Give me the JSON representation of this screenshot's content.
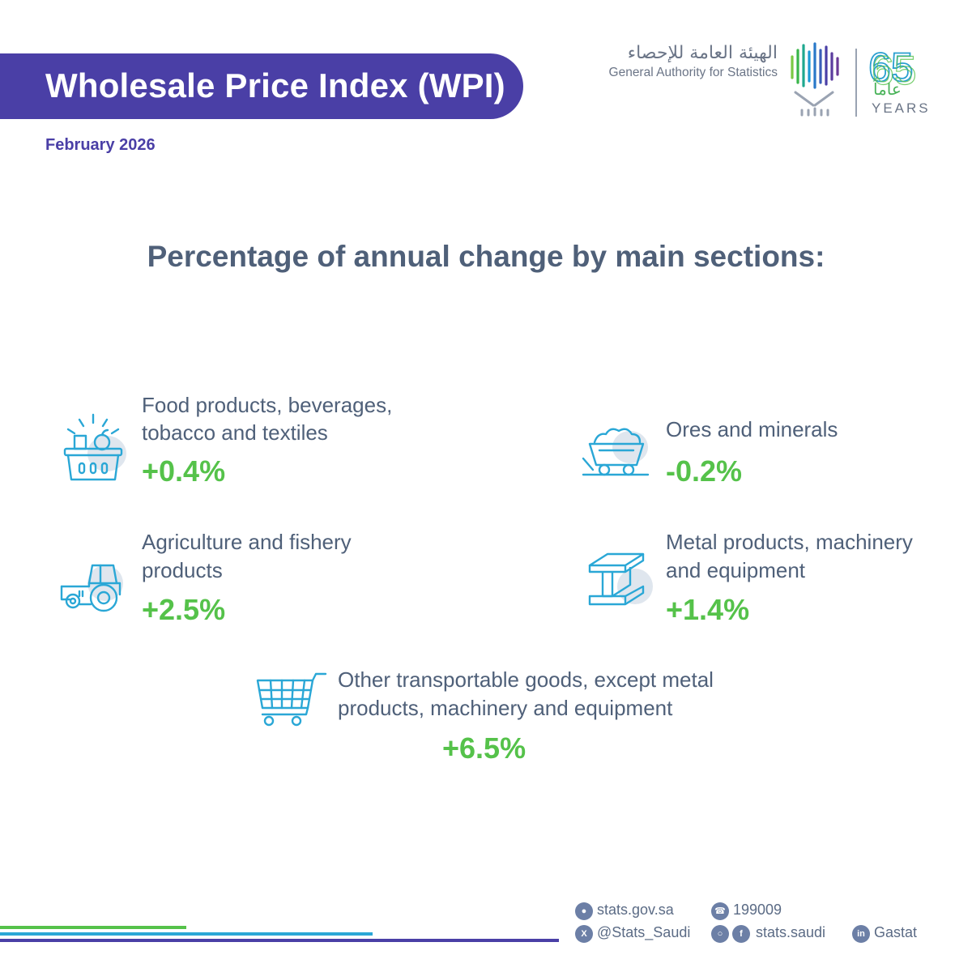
{
  "header": {
    "title": "Wholesale Price Index (WPI)",
    "date": "February 2026"
  },
  "logo": {
    "arabic_name": "الهيئة العامة للإحصاء",
    "english_name": "General Authority for Statistics",
    "anniversary_number": "65",
    "anniversary_arabic": "عاماً",
    "anniversary_english": "YEARS"
  },
  "heading": "Percentage of annual change by main sections:",
  "sections": [
    {
      "line1": "Food products, beverages,",
      "line2": "tobacco and textiles",
      "value": "+0.4%",
      "icon": "food-basket-icon"
    },
    {
      "line1": "Ores and minerals",
      "line2": "",
      "value": "-0.2%",
      "icon": "mine-cart-icon"
    },
    {
      "line1": "Agriculture and fishery",
      "line2": "products",
      "value": "+2.5%",
      "icon": "tractor-icon"
    },
    {
      "line1": "Metal products, machinery",
      "line2": "and equipment",
      "value": "+1.4%",
      "icon": "steel-beam-icon"
    },
    {
      "line1": "Other transportable goods, except metal",
      "line2": "products, machinery and equipment",
      "value": "+6.5%",
      "icon": "shopping-cart-icon"
    }
  ],
  "footer": {
    "website": "stats.gov.sa",
    "phone": "199009",
    "twitter": "@Stats_Saudi",
    "social": "stats.saudi",
    "linkedin": "Gastat"
  },
  "colors": {
    "brand_purple": "#4a3fa6",
    "positive_green": "#55c24a",
    "icon_blue": "#2aa7d6",
    "text_slate": "#4f6079"
  }
}
